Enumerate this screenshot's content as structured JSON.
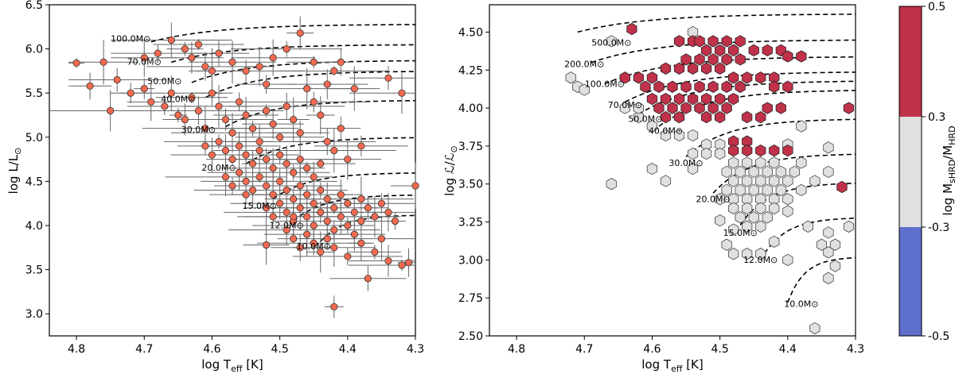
{
  "chart_data": [
    {
      "type": "scatter",
      "panel": "left",
      "xlabel": "log T_eff [K]",
      "ylabel": "log L/L⊙",
      "xlim": [
        4.84,
        4.3
      ],
      "ylim": [
        2.75,
        6.5
      ],
      "xticks": [
        "4.8",
        "4.7",
        "4.6",
        "4.5",
        "4.4",
        "4.3"
      ],
      "yticks": [
        "3.0",
        "3.5",
        "4.0",
        "4.5",
        "5.0",
        "5.5",
        "6.0",
        "6.5"
      ],
      "marker_color": "#f26a4f",
      "mass_labels": [
        "100.0M⊙",
        "70.0M⊙",
        "50.0M⊙",
        "40.0M⊙",
        "30.0M⊙",
        "20.0M⊙",
        "15.0M⊙",
        "12.0M⊙",
        "10.0M⊙"
      ],
      "points": [
        [
          4.8,
          5.84
        ],
        [
          4.78,
          5.58
        ],
        [
          4.76,
          5.85
        ],
        [
          4.74,
          5.65
        ],
        [
          4.75,
          5.3
        ],
        [
          4.72,
          5.5
        ],
        [
          4.7,
          5.9
        ],
        [
          4.68,
          5.95
        ],
        [
          4.66,
          6.1
        ],
        [
          4.64,
          6.0
        ],
        [
          4.63,
          5.9
        ],
        [
          4.62,
          6.05
        ],
        [
          4.61,
          5.8
        ],
        [
          4.6,
          5.75
        ],
        [
          4.59,
          5.95
        ],
        [
          4.57,
          5.85
        ],
        [
          4.55,
          5.75
        ],
        [
          4.53,
          5.8
        ],
        [
          4.52,
          5.6
        ],
        [
          4.51,
          5.9
        ],
        [
          4.49,
          6.0
        ],
        [
          4.47,
          6.18
        ],
        [
          4.45,
          5.85
        ],
        [
          4.43,
          5.6
        ],
        [
          4.42,
          5.75
        ],
        [
          4.41,
          5.85
        ],
        [
          4.39,
          5.55
        ],
        [
          4.34,
          5.67
        ],
        [
          4.32,
          5.5
        ],
        [
          4.7,
          5.55
        ],
        [
          4.69,
          5.4
        ],
        [
          4.67,
          5.35
        ],
        [
          4.66,
          5.5
        ],
        [
          4.65,
          5.25
        ],
        [
          4.64,
          5.2
        ],
        [
          4.63,
          5.45
        ],
        [
          4.62,
          5.3
        ],
        [
          4.61,
          5.1
        ],
        [
          4.6,
          5.5
        ],
        [
          4.59,
          5.35
        ],
        [
          4.58,
          5.2
        ],
        [
          4.57,
          5.05
        ],
        [
          4.56,
          5.4
        ],
        [
          4.55,
          5.25
        ],
        [
          4.54,
          5.1
        ],
        [
          4.53,
          4.95
        ],
        [
          4.52,
          5.3
        ],
        [
          4.51,
          5.15
        ],
        [
          4.5,
          5.0
        ],
        [
          4.49,
          5.35
        ],
        [
          4.48,
          5.2
        ],
        [
          4.47,
          5.05
        ],
        [
          4.46,
          5.55
        ],
        [
          4.45,
          5.4
        ],
        [
          4.44,
          5.25
        ],
        [
          4.61,
          4.9
        ],
        [
          4.6,
          4.8
        ],
        [
          4.59,
          4.95
        ],
        [
          4.58,
          4.85
        ],
        [
          4.57,
          4.75
        ],
        [
          4.56,
          4.9
        ],
        [
          4.55,
          4.8
        ],
        [
          4.54,
          4.7
        ],
        [
          4.53,
          4.85
        ],
        [
          4.52,
          4.75
        ],
        [
          4.51,
          4.65
        ],
        [
          4.5,
          4.8
        ],
        [
          4.49,
          4.7
        ],
        [
          4.48,
          4.6
        ],
        [
          4.47,
          4.75
        ],
        [
          4.46,
          4.65
        ],
        [
          4.45,
          4.55
        ],
        [
          4.44,
          4.7
        ],
        [
          4.43,
          4.95
        ],
        [
          4.42,
          4.85
        ],
        [
          4.41,
          5.1
        ],
        [
          4.4,
          4.75
        ],
        [
          4.38,
          4.9
        ],
        [
          4.58,
          4.55
        ],
        [
          4.57,
          4.45
        ],
        [
          4.56,
          4.6
        ],
        [
          4.55,
          4.5
        ],
        [
          4.54,
          4.4
        ],
        [
          4.53,
          4.55
        ],
        [
          4.52,
          4.45
        ],
        [
          4.51,
          4.35
        ],
        [
          4.5,
          4.5
        ],
        [
          4.49,
          4.4
        ],
        [
          4.48,
          4.3
        ],
        [
          4.47,
          4.45
        ],
        [
          4.46,
          4.35
        ],
        [
          4.45,
          4.25
        ],
        [
          4.44,
          4.4
        ],
        [
          4.43,
          4.3
        ],
        [
          4.42,
          4.2
        ],
        [
          4.41,
          4.35
        ],
        [
          4.4,
          4.25
        ],
        [
          4.39,
          4.15
        ],
        [
          4.38,
          4.3
        ],
        [
          4.37,
          4.2
        ],
        [
          4.36,
          4.1
        ],
        [
          4.35,
          4.25
        ],
        [
          4.34,
          4.15
        ],
        [
          4.33,
          4.05
        ],
        [
          4.52,
          4.2
        ],
        [
          4.51,
          4.1
        ],
        [
          4.5,
          4.25
        ],
        [
          4.49,
          4.15
        ],
        [
          4.48,
          4.05
        ],
        [
          4.47,
          4.2
        ],
        [
          4.46,
          4.1
        ],
        [
          4.45,
          4.0
        ],
        [
          4.44,
          4.15
        ],
        [
          4.43,
          4.05
        ],
        [
          4.42,
          3.95
        ],
        [
          4.41,
          4.1
        ],
        [
          4.4,
          4.0
        ],
        [
          4.39,
          3.9
        ],
        [
          4.38,
          4.05
        ],
        [
          4.49,
          3.95
        ],
        [
          4.48,
          3.85
        ],
        [
          4.47,
          3.75
        ],
        [
          4.46,
          3.9
        ],
        [
          4.45,
          3.8
        ],
        [
          4.44,
          3.7
        ],
        [
          4.43,
          3.85
        ],
        [
          4.42,
          3.75
        ],
        [
          4.4,
          3.65
        ],
        [
          4.38,
          3.8
        ],
        [
          4.36,
          3.7
        ],
        [
          4.34,
          3.6
        ],
        [
          4.32,
          3.55
        ],
        [
          4.31,
          3.58
        ],
        [
          4.3,
          4.45
        ],
        [
          4.37,
          3.4
        ],
        [
          4.35,
          3.85
        ],
        [
          4.42,
          3.08
        ],
        [
          4.52,
          3.78
        ],
        [
          4.55,
          4.35
        ],
        [
          4.48,
          4.1
        ]
      ]
    },
    {
      "type": "heatmap",
      "panel": "right",
      "xlabel": "log T_eff [K]",
      "ylabel": "log ℒ/ℒ⊙",
      "xlim": [
        4.84,
        4.3
      ],
      "ylim": [
        2.5,
        4.68
      ],
      "xticks": [
        "4.8",
        "4.7",
        "4.6",
        "4.5",
        "4.4",
        "4.3"
      ],
      "yticks": [
        "2.50",
        "2.75",
        "3.00",
        "3.25",
        "3.50",
        "3.75",
        "4.00",
        "4.25",
        "4.50"
      ],
      "mass_labels": [
        "500.0M⊙",
        "200.0M⊙",
        "100.0M⊙",
        "70.0M⊙",
        "50.0M⊙",
        "40.0M⊙",
        "30.0M⊙",
        "20.0M⊙",
        "15.0M⊙",
        "12.0M⊙",
        "10.0M⊙"
      ],
      "colorbar": {
        "label": "log M_sHRD/M_HRD",
        "ticks": [
          "0.5",
          "0.3",
          "-0.3",
          "-0.5"
        ],
        "colors": {
          "high": "#c0314a",
          "mid": "#e0e0e0",
          "low": "#5e6fcc"
        }
      },
      "red_cells": [
        [
          4.63,
          4.52
        ],
        [
          4.56,
          4.44
        ],
        [
          4.54,
          4.44
        ],
        [
          4.52,
          4.38
        ],
        [
          4.5,
          4.38
        ],
        [
          4.48,
          4.38
        ],
        [
          4.53,
          4.44
        ],
        [
          4.51,
          4.44
        ],
        [
          4.49,
          4.44
        ],
        [
          4.47,
          4.44
        ],
        [
          4.45,
          4.38
        ],
        [
          4.43,
          4.38
        ],
        [
          4.41,
          4.38
        ],
        [
          4.4,
          4.34
        ],
        [
          4.38,
          4.34
        ],
        [
          4.55,
          4.32
        ],
        [
          4.53,
          4.32
        ],
        [
          4.51,
          4.32
        ],
        [
          4.49,
          4.32
        ],
        [
          4.47,
          4.32
        ],
        [
          4.64,
          4.2
        ],
        [
          4.62,
          4.2
        ],
        [
          4.6,
          4.2
        ],
        [
          4.58,
          4.26
        ],
        [
          4.56,
          4.26
        ],
        [
          4.54,
          4.26
        ],
        [
          4.52,
          4.26
        ],
        [
          4.5,
          4.26
        ],
        [
          4.48,
          4.2
        ],
        [
          4.46,
          4.2
        ],
        [
          4.44,
          4.2
        ],
        [
          4.42,
          4.2
        ],
        [
          4.61,
          4.14
        ],
        [
          4.59,
          4.14
        ],
        [
          4.57,
          4.14
        ],
        [
          4.55,
          4.14
        ],
        [
          4.53,
          4.14
        ],
        [
          4.51,
          4.14
        ],
        [
          4.49,
          4.14
        ],
        [
          4.47,
          4.14
        ],
        [
          4.6,
          4.06
        ],
        [
          4.58,
          4.06
        ],
        [
          4.56,
          4.06
        ],
        [
          4.54,
          4.06
        ],
        [
          4.52,
          4.06
        ],
        [
          4.5,
          4.06
        ],
        [
          4.48,
          4.06
        ],
        [
          4.59,
          4.0
        ],
        [
          4.57,
          4.0
        ],
        [
          4.55,
          4.0
        ],
        [
          4.53,
          4.0
        ],
        [
          4.51,
          4.0
        ],
        [
          4.49,
          4.0
        ],
        [
          4.58,
          3.94
        ],
        [
          4.56,
          3.94
        ],
        [
          4.52,
          3.94
        ],
        [
          4.5,
          3.94
        ],
        [
          4.46,
          3.94
        ],
        [
          4.44,
          3.94
        ],
        [
          4.43,
          4.0
        ],
        [
          4.41,
          4.0
        ],
        [
          4.42,
          4.14
        ],
        [
          4.4,
          4.14
        ],
        [
          4.31,
          4.0
        ],
        [
          4.48,
          3.78
        ],
        [
          4.46,
          3.78
        ],
        [
          4.48,
          3.72
        ],
        [
          4.46,
          3.72
        ],
        [
          4.44,
          3.72
        ],
        [
          4.42,
          3.72
        ],
        [
          4.4,
          3.72
        ],
        [
          4.32,
          3.48
        ]
      ],
      "grey_cells": [
        [
          4.66,
          4.44
        ],
        [
          4.54,
          4.5
        ],
        [
          4.72,
          4.2
        ],
        [
          4.71,
          4.14
        ],
        [
          4.7,
          4.12
        ],
        [
          4.64,
          4.0
        ],
        [
          4.62,
          3.94
        ],
        [
          4.62,
          4.0
        ],
        [
          4.6,
          3.88
        ],
        [
          4.58,
          3.82
        ],
        [
          4.56,
          3.82
        ],
        [
          4.54,
          3.82
        ],
        [
          4.52,
          3.76
        ],
        [
          4.5,
          3.76
        ],
        [
          4.54,
          3.7
        ],
        [
          4.52,
          3.7
        ],
        [
          4.5,
          3.7
        ],
        [
          4.48,
          3.64
        ],
        [
          4.46,
          3.64
        ],
        [
          4.44,
          3.64
        ],
        [
          4.42,
          3.64
        ],
        [
          4.49,
          3.58
        ],
        [
          4.47,
          3.58
        ],
        [
          4.45,
          3.58
        ],
        [
          4.43,
          3.58
        ],
        [
          4.41,
          3.58
        ],
        [
          4.39,
          3.58
        ],
        [
          4.48,
          3.52
        ],
        [
          4.46,
          3.52
        ],
        [
          4.44,
          3.52
        ],
        [
          4.42,
          3.52
        ],
        [
          4.4,
          3.52
        ],
        [
          4.49,
          3.46
        ],
        [
          4.47,
          3.46
        ],
        [
          4.45,
          3.46
        ],
        [
          4.43,
          3.46
        ],
        [
          4.41,
          3.46
        ],
        [
          4.38,
          3.46
        ],
        [
          4.5,
          3.4
        ],
        [
          4.48,
          3.4
        ],
        [
          4.46,
          3.4
        ],
        [
          4.44,
          3.4
        ],
        [
          4.42,
          3.4
        ],
        [
          4.4,
          3.4
        ],
        [
          4.36,
          3.52
        ],
        [
          4.34,
          3.58
        ],
        [
          4.38,
          3.64
        ],
        [
          4.4,
          3.76
        ],
        [
          4.38,
          3.88
        ],
        [
          4.34,
          3.74
        ],
        [
          4.66,
          3.5
        ],
        [
          4.58,
          3.52
        ],
        [
          4.54,
          3.6
        ],
        [
          4.6,
          3.6
        ],
        [
          4.48,
          3.34
        ],
        [
          4.46,
          3.34
        ],
        [
          4.44,
          3.34
        ],
        [
          4.42,
          3.34
        ],
        [
          4.47,
          3.28
        ],
        [
          4.45,
          3.28
        ],
        [
          4.43,
          3.28
        ],
        [
          4.46,
          3.22
        ],
        [
          4.44,
          3.22
        ],
        [
          4.5,
          3.26
        ],
        [
          4.48,
          3.2
        ],
        [
          4.49,
          3.1
        ],
        [
          4.48,
          3.04
        ],
        [
          4.46,
          3.04
        ],
        [
          4.44,
          3.04
        ],
        [
          4.42,
          3.12
        ],
        [
          4.4,
          3.0
        ],
        [
          4.37,
          3.22
        ],
        [
          4.34,
          3.18
        ],
        [
          4.33,
          3.1
        ],
        [
          4.35,
          3.1
        ],
        [
          4.34,
          3.05
        ],
        [
          4.31,
          3.22
        ],
        [
          4.33,
          2.96
        ],
        [
          4.34,
          2.88
        ],
        [
          4.36,
          2.55
        ],
        [
          4.4,
          3.32
        ]
      ]
    }
  ]
}
